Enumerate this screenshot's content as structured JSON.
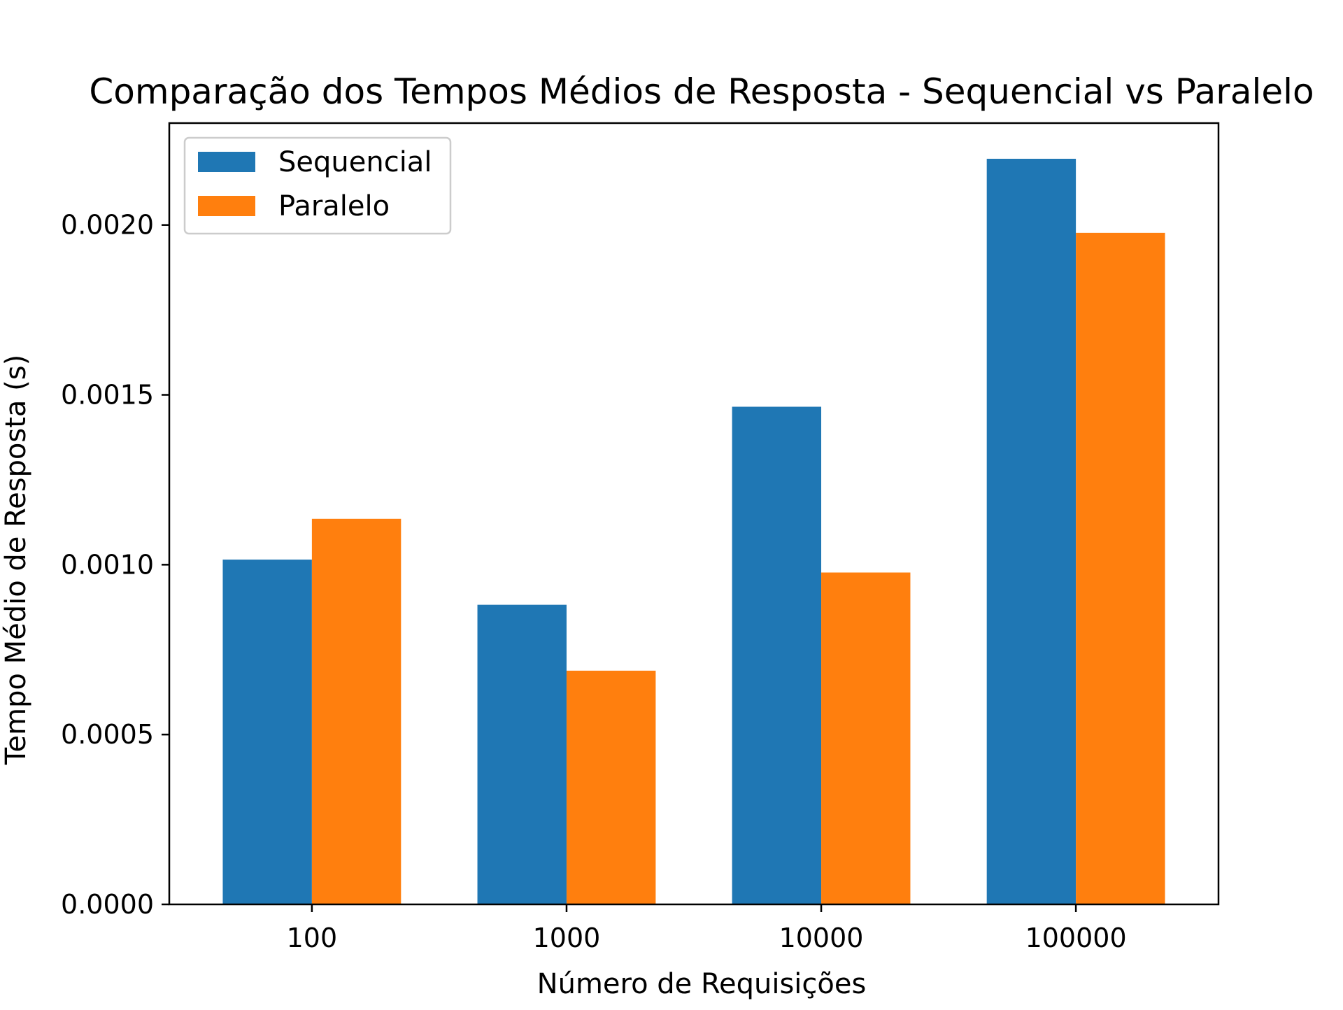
{
  "chart_data": {
    "type": "bar",
    "title": "Comparação dos Tempos Médios de Resposta - Sequencial vs Paralelo",
    "xlabel": "Número de Requisições",
    "ylabel": "Tempo Médio de Resposta (s)",
    "categories": [
      "100",
      "1000",
      "10000",
      "100000"
    ],
    "series": [
      {
        "name": "Sequencial",
        "color": "#1f77b4",
        "values": [
          0.001015,
          0.000882,
          0.001465,
          0.002195
        ]
      },
      {
        "name": "Paralelo",
        "color": "#ff7f0e",
        "values": [
          0.001135,
          0.000688,
          0.000977,
          0.001977
        ]
      }
    ],
    "ylim": [
      0,
      0.0023
    ],
    "yticks": [
      0.0,
      0.0005,
      0.001,
      0.0015,
      0.002
    ],
    "ytick_labels": [
      "0.0000",
      "0.0005",
      "0.0010",
      "0.0015",
      "0.0020"
    ],
    "grid": false,
    "legend_position": "top-left"
  }
}
